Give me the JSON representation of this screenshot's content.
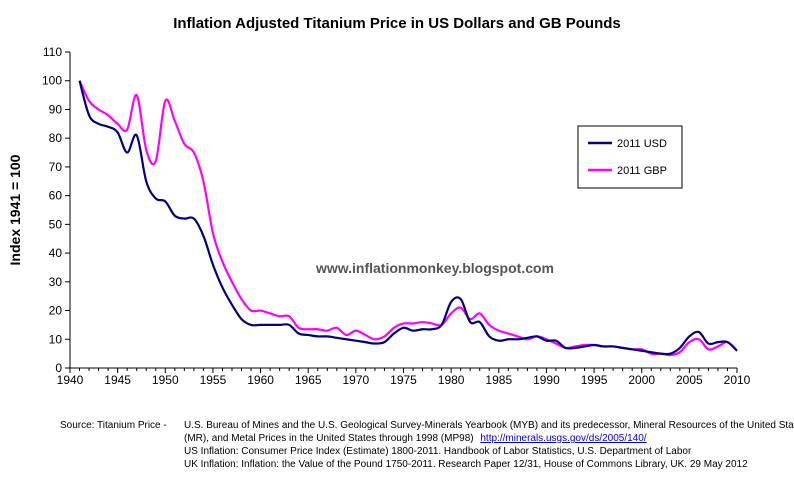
{
  "chart_data": {
    "type": "line",
    "title": "Inflation Adjusted Titanium Price in US Dollars and GB Pounds",
    "ylabel": "Index 1941 = 100",
    "xlabel": "",
    "xlim": [
      1940,
      2010
    ],
    "ylim": [
      0,
      110
    ],
    "x_ticks": [
      1940,
      1945,
      1950,
      1955,
      1960,
      1965,
      1970,
      1975,
      1980,
      1985,
      1990,
      1995,
      2000,
      2005,
      2010
    ],
    "y_ticks": [
      0,
      10,
      20,
      30,
      40,
      50,
      60,
      70,
      80,
      90,
      100,
      110
    ],
    "grid": false,
    "watermark": "www.inflationmonkey.blogspot.com",
    "legend": {
      "placement": "right",
      "entries": [
        "2011 USD",
        "2011 GBP"
      ]
    },
    "series": [
      {
        "name": "2011 USD",
        "color": "#000080",
        "points": [
          [
            1941,
            100
          ],
          [
            1942,
            88
          ],
          [
            1943,
            85
          ],
          [
            1944,
            84
          ],
          [
            1945,
            82
          ],
          [
            1946,
            75
          ],
          [
            1947,
            81
          ],
          [
            1948,
            65
          ],
          [
            1949,
            59
          ],
          [
            1950,
            58
          ],
          [
            1951,
            53
          ],
          [
            1952,
            52
          ],
          [
            1953,
            52
          ],
          [
            1954,
            46
          ],
          [
            1955,
            36
          ],
          [
            1956,
            28
          ],
          [
            1957,
            22
          ],
          [
            1958,
            17
          ],
          [
            1959,
            15
          ],
          [
            1960,
            15
          ],
          [
            1961,
            15
          ],
          [
            1962,
            15
          ],
          [
            1963,
            15
          ],
          [
            1964,
            12
          ],
          [
            1965,
            11.5
          ],
          [
            1966,
            11
          ],
          [
            1967,
            11
          ],
          [
            1968,
            10.5
          ],
          [
            1969,
            10
          ],
          [
            1970,
            9.5
          ],
          [
            1971,
            9
          ],
          [
            1972,
            8.5
          ],
          [
            1973,
            9
          ],
          [
            1974,
            12
          ],
          [
            1975,
            14
          ],
          [
            1976,
            13
          ],
          [
            1977,
            13.5
          ],
          [
            1978,
            13.5
          ],
          [
            1979,
            15
          ],
          [
            1980,
            23
          ],
          [
            1981,
            24
          ],
          [
            1982,
            16
          ],
          [
            1983,
            16
          ],
          [
            1984,
            11
          ],
          [
            1985,
            9.5
          ],
          [
            1986,
            10
          ],
          [
            1987,
            10
          ],
          [
            1988,
            10.5
          ],
          [
            1989,
            11
          ],
          [
            1990,
            9.5
          ],
          [
            1991,
            9.5
          ],
          [
            1992,
            7
          ],
          [
            1993,
            7
          ],
          [
            1994,
            7.5
          ],
          [
            1995,
            8
          ],
          [
            1996,
            7.5
          ],
          [
            1997,
            7.5
          ],
          [
            1998,
            7
          ],
          [
            1999,
            6.5
          ],
          [
            2000,
            6
          ],
          [
            2001,
            5.5
          ],
          [
            2002,
            5
          ],
          [
            2003,
            5
          ],
          [
            2004,
            7
          ],
          [
            2005,
            11
          ],
          [
            2006,
            12.5
          ],
          [
            2007,
            8.5
          ],
          [
            2008,
            9
          ],
          [
            2009,
            9
          ],
          [
            2010,
            6
          ]
        ]
      },
      {
        "name": "2011 GBP",
        "color": "#ff00ff",
        "points": [
          [
            1941,
            100
          ],
          [
            1942,
            93
          ],
          [
            1943,
            90
          ],
          [
            1944,
            88
          ],
          [
            1945,
            85
          ],
          [
            1946,
            83
          ],
          [
            1947,
            95
          ],
          [
            1948,
            76
          ],
          [
            1949,
            72
          ],
          [
            1950,
            93
          ],
          [
            1951,
            86
          ],
          [
            1952,
            78
          ],
          [
            1953,
            75
          ],
          [
            1954,
            65
          ],
          [
            1955,
            47
          ],
          [
            1956,
            37
          ],
          [
            1957,
            30
          ],
          [
            1958,
            24
          ],
          [
            1959,
            20
          ],
          [
            1960,
            20
          ],
          [
            1961,
            19
          ],
          [
            1962,
            18
          ],
          [
            1963,
            18
          ],
          [
            1964,
            14
          ],
          [
            1965,
            13.5
          ],
          [
            1966,
            13.5
          ],
          [
            1967,
            13
          ],
          [
            1968,
            14
          ],
          [
            1969,
            11.5
          ],
          [
            1970,
            13
          ],
          [
            1971,
            11.5
          ],
          [
            1972,
            10
          ],
          [
            1973,
            11
          ],
          [
            1974,
            14
          ],
          [
            1975,
            15.5
          ],
          [
            1976,
            15.5
          ],
          [
            1977,
            16
          ],
          [
            1978,
            15.5
          ],
          [
            1979,
            15
          ],
          [
            1980,
            19
          ],
          [
            1981,
            21
          ],
          [
            1982,
            17
          ],
          [
            1983,
            19
          ],
          [
            1984,
            15
          ],
          [
            1985,
            13
          ],
          [
            1986,
            12
          ],
          [
            1987,
            11
          ],
          [
            1988,
            10
          ],
          [
            1989,
            11
          ],
          [
            1990,
            10
          ],
          [
            1991,
            8.5
          ],
          [
            1992,
            7
          ],
          [
            1993,
            7.5
          ],
          [
            1994,
            8
          ],
          [
            1995,
            8
          ],
          [
            1996,
            7.5
          ],
          [
            1997,
            7.5
          ],
          [
            1998,
            7
          ],
          [
            1999,
            6.5
          ],
          [
            2000,
            6.5
          ],
          [
            2001,
            5
          ],
          [
            2002,
            5
          ],
          [
            2003,
            4.5
          ],
          [
            2004,
            5.5
          ],
          [
            2005,
            9
          ],
          [
            2006,
            10
          ],
          [
            2007,
            6.5
          ],
          [
            2008,
            7.5
          ],
          [
            2009,
            9
          ],
          [
            2010,
            6
          ]
        ]
      }
    ]
  },
  "footer": {
    "source_label": "Source:  Titanium Price  -",
    "source_line1": "U.S. Bureau of Mines and the U.S. Geological Survey-Minerals Yearbook (MYB) and its predecessor, Mineral Resources of the United States",
    "source_line2_text": "(MR), and Metal Prices in the United States through 1998 (MP98)",
    "source_line2_link": "http://minerals.usgs.gov/ds/2005/140/",
    "us_inflation": "US Inflation:  Consumer Price Index (Estimate) 1800-2011. Handbook of Labor Statistics, U.S. Department of Labor",
    "uk_inflation": "UK Inflation:  Inflation: the Value of the Pound 1750-2011. Research Paper  12/31, House of Commons Library, UK. 29 May 2012"
  }
}
